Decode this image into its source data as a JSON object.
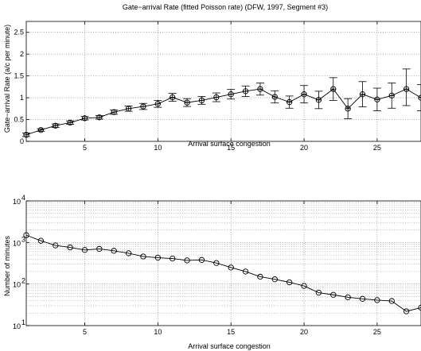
{
  "chart_data": [
    {
      "type": "line",
      "title": "Gate−arrival Rate (fitted Poisson rate) (DFW, 1997, Segment #3)",
      "xlabel": "Arrival surface congestion",
      "ylabel": "Gate−arrival Rate (a/c per minute)",
      "xlim": [
        1,
        28
      ],
      "ylim": [
        0,
        2.75
      ],
      "xticks": [
        5,
        10,
        15,
        20,
        25
      ],
      "yticks": [
        0,
        0.5,
        1,
        1.5,
        2,
        2.5
      ],
      "ytick_labels": [
        "0",
        "0.5",
        "1",
        "1.5",
        "2",
        "2.5"
      ],
      "grid": true,
      "x": [
        1,
        2,
        3,
        4,
        5,
        6,
        7,
        8,
        9,
        10,
        11,
        12,
        13,
        14,
        15,
        16,
        17,
        18,
        19,
        20,
        21,
        22,
        23,
        24,
        25,
        26,
        27,
        28
      ],
      "values": [
        0.15,
        0.26,
        0.36,
        0.43,
        0.53,
        0.55,
        0.67,
        0.75,
        0.8,
        0.86,
        1.01,
        0.89,
        0.94,
        1.01,
        1.08,
        1.15,
        1.2,
        1.02,
        0.9,
        1.08,
        0.95,
        1.2,
        0.75,
        1.08,
        0.96,
        1.05,
        1.2,
        1.0
      ],
      "error_low": [
        0.11,
        0.23,
        0.32,
        0.39,
        0.49,
        0.51,
        0.62,
        0.69,
        0.73,
        0.78,
        0.92,
        0.8,
        0.85,
        0.91,
        0.97,
        1.03,
        1.06,
        0.88,
        0.76,
        0.88,
        0.75,
        0.94,
        0.52,
        0.79,
        0.7,
        0.76,
        0.82,
        0.7
      ],
      "error_high": [
        0.19,
        0.29,
        0.4,
        0.47,
        0.57,
        0.59,
        0.72,
        0.81,
        0.87,
        0.94,
        1.1,
        0.98,
        1.03,
        1.11,
        1.19,
        1.27,
        1.34,
        1.16,
        1.04,
        1.28,
        1.15,
        1.46,
        0.98,
        1.37,
        1.22,
        1.34,
        1.66,
        1.3
      ]
    },
    {
      "type": "line",
      "title": "",
      "xlabel": "Arrival surface congestion",
      "ylabel": "Number of minutes",
      "yscale": "log",
      "xlim": [
        1,
        28
      ],
      "ylim": [
        10,
        10000
      ],
      "xticks": [
        5,
        10,
        15,
        20,
        25
      ],
      "yticks": [
        {
          "base": "10",
          "exp": "1"
        },
        {
          "base": "10",
          "exp": "2"
        },
        {
          "base": "10",
          "exp": "3"
        },
        {
          "base": "10",
          "exp": "4"
        }
      ],
      "grid": true,
      "x": [
        1,
        2,
        3,
        4,
        5,
        6,
        7,
        8,
        9,
        10,
        11,
        12,
        13,
        14,
        15,
        16,
        17,
        18,
        19,
        20,
        21,
        22,
        23,
        24,
        25,
        26,
        27,
        28
      ],
      "values": [
        1500,
        1100,
        850,
        760,
        660,
        700,
        630,
        550,
        460,
        430,
        410,
        370,
        380,
        320,
        250,
        200,
        150,
        130,
        110,
        90,
        62,
        55,
        48,
        44,
        41,
        39,
        22,
        27
      ]
    }
  ]
}
